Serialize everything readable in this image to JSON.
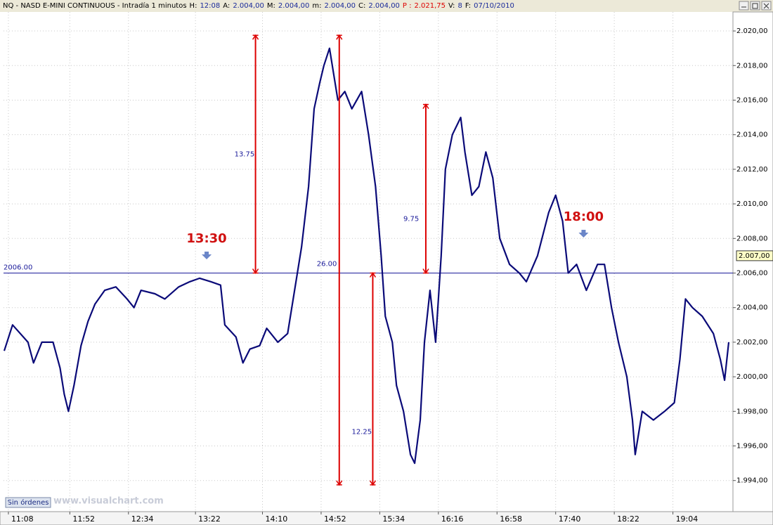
{
  "header": {
    "title": "NQ - NASD E-MINI CONTINUOUS - Intradía 1 minutos",
    "fields": [
      {
        "label": "H:",
        "value": "12:08"
      },
      {
        "label": "A:",
        "value": "2.004,00"
      },
      {
        "label": "M:",
        "value": "2.004,00"
      },
      {
        "label": "m:",
        "value": "2.004,00"
      },
      {
        "label": "C:",
        "value": "2.004,00"
      },
      {
        "label": "P :",
        "value": "2.021,75"
      },
      {
        "label": "V:",
        "value": "8"
      },
      {
        "label": "F:",
        "value": "07/10/2010"
      }
    ]
  },
  "footer": {
    "status": "Sin órdenes",
    "watermark": "www.visualchart.com"
  },
  "chart_data": {
    "type": "line",
    "color": "#0a0a78",
    "grid": true,
    "x": [
      665,
      671,
      682,
      686,
      692,
      700,
      705,
      708,
      711,
      715,
      720,
      725,
      730,
      737,
      745,
      753,
      758,
      763,
      773,
      780,
      790,
      798,
      805,
      813,
      820,
      823,
      831,
      836,
      841,
      848,
      853,
      861,
      868,
      873,
      878,
      883,
      887,
      891,
      894,
      898,
      904,
      909,
      914,
      921,
      926,
      931,
      935,
      938,
      943,
      946,
      951,
      956,
      959,
      963,
      966,
      970,
      974,
      978,
      981,
      986,
      992,
      995,
      1000,
      1005,
      1010,
      1015,
      1020,
      1027,
      1034,
      1039,
      1047,
      1055,
      1060,
      1065,
      1069,
      1075,
      1082,
      1090,
      1095,
      1100,
      1105,
      1111,
      1115,
      1117,
      1122,
      1130,
      1138,
      1145,
      1149,
      1153,
      1158,
      1165,
      1173,
      1178,
      1181,
      1184
    ],
    "values": [
      2001.5,
      2003,
      2002,
      2000.8,
      2002,
      2002,
      2000.5,
      1999,
      1998,
      1999.5,
      2001.8,
      2003.2,
      2004.2,
      2005,
      2005.2,
      2004.5,
      2004,
      2005,
      2004.8,
      2004.5,
      2005.2,
      2005.5,
      2005.7,
      2005.5,
      2005.3,
      2003,
      2002.3,
      2000.8,
      2001.6,
      2001.8,
      2002.8,
      2002,
      2002.5,
      2005,
      2007.5,
      2011,
      2015.5,
      2017,
      2018,
      2019,
      2016,
      2016.5,
      2015.5,
      2016.5,
      2014,
      2011,
      2007,
      2003.5,
      2002,
      1999.5,
      1998,
      1995.5,
      1995,
      1997.5,
      2002,
      2005,
      2002,
      2007,
      2012,
      2014,
      2015,
      2013,
      2010.5,
      2011,
      2013,
      2011.5,
      2008,
      2006.5,
      2006,
      2005.5,
      2007,
      2009.5,
      2010.5,
      2009,
      2006,
      2006.5,
      2005,
      2006.5,
      2006.5,
      2004,
      2002,
      2000,
      1997.5,
      1995.5,
      1998,
      1997.5,
      1998,
      1998.5,
      2001,
      2004.5,
      2004,
      2003.5,
      2002.5,
      2001,
      1999.8,
      2002
    ],
    "xlim": [
      664.5,
      1187
    ],
    "ylim": [
      1992.2,
      2021.1
    ],
    "xticks": [
      {
        "value": 668,
        "label": "11:08"
      },
      {
        "value": 712,
        "label": "11:52"
      },
      {
        "value": 754,
        "label": "12:34"
      },
      {
        "value": 802,
        "label": "13:22"
      },
      {
        "value": 850,
        "label": "14:10"
      },
      {
        "value": 892,
        "label": "14:52"
      },
      {
        "value": 934,
        "label": "15:34"
      },
      {
        "value": 976,
        "label": "16:16"
      },
      {
        "value": 1018,
        "label": "16:58"
      },
      {
        "value": 1060,
        "label": "17:40"
      },
      {
        "value": 1102,
        "label": "18:22"
      },
      {
        "value": 1144,
        "label": "19:04"
      }
    ],
    "yticks": [
      {
        "value": 1994,
        "label": "1.994,00"
      },
      {
        "value": 1996,
        "label": "1.996,00"
      },
      {
        "value": 1998,
        "label": "1.998,00"
      },
      {
        "value": 2000,
        "label": "2.000,00"
      },
      {
        "value": 2002,
        "label": "2.002,00"
      },
      {
        "value": 2004,
        "label": "2.004,00"
      },
      {
        "value": 2006,
        "label": "2.006,00"
      },
      {
        "value": 2008,
        "label": "2.008,00"
      },
      {
        "value": 2010,
        "label": "2.010,00"
      },
      {
        "value": 2012,
        "label": "2.012,00"
      },
      {
        "value": 2014,
        "label": "2.014,00"
      },
      {
        "value": 2016,
        "label": "2.016,00"
      },
      {
        "value": 2018,
        "label": "2.018,00"
      },
      {
        "value": 2020,
        "label": "2.020,00"
      }
    ],
    "hline": {
      "value": 2006,
      "label": "2006.00"
    },
    "last_price": {
      "value": 2007,
      "label": "2.007,00"
    },
    "measurements": [
      {
        "x": 845,
        "from": 2006,
        "to": 2019.75,
        "label": "13.75"
      },
      {
        "x": 905,
        "from": 1993.75,
        "to": 2019.75,
        "label": "26.00"
      },
      {
        "x": 929,
        "from": 1993.75,
        "to": 2006,
        "label": "12.25"
      },
      {
        "x": 967,
        "from": 2006,
        "to": 2015.75,
        "label": "9.75"
      }
    ],
    "markers": [
      {
        "x": 810,
        "label": "13:30"
      },
      {
        "x": 1080,
        "label": "18:00"
      }
    ]
  }
}
